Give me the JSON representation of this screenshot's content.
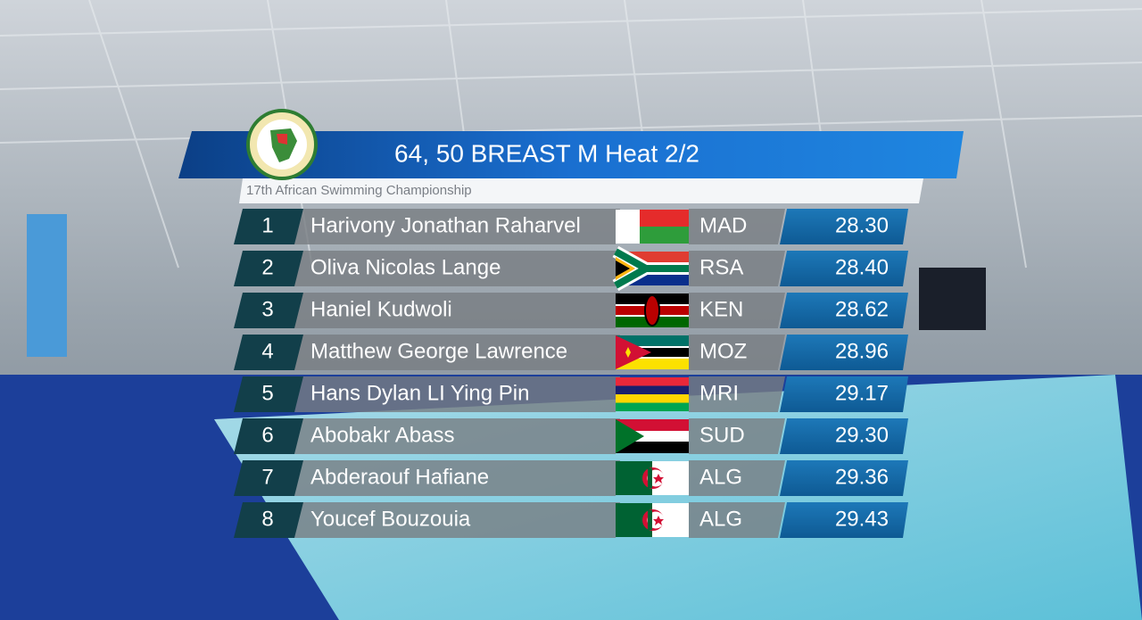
{
  "header": {
    "title": "64, 50 BREAST M Heat 2/2",
    "subtitle": "17th African Swimming Championship"
  },
  "results": [
    {
      "rank": "1",
      "name": "Harivony Jonathan Raharvel",
      "country": "MAD",
      "time": "28.30"
    },
    {
      "rank": "2",
      "name": "Oliva Nicolas Lange",
      "country": "RSA",
      "time": "28.40"
    },
    {
      "rank": "3",
      "name": "Haniel Kudwoli",
      "country": "KEN",
      "time": "28.62"
    },
    {
      "rank": "4",
      "name": "Matthew George Lawrence",
      "country": "MOZ",
      "time": "28.96"
    },
    {
      "rank": "5",
      "name": "Hans Dylan LI Ying Pin",
      "country": "MRI",
      "time": "29.17"
    },
    {
      "rank": "6",
      "name": "Abobakr Abass",
      "country": "SUD",
      "time": "29.30"
    },
    {
      "rank": "7",
      "name": "Abderaouf Hafiane",
      "country": "ALG",
      "time": "29.36"
    },
    {
      "rank": "8",
      "name": "Youcef Bouzouia",
      "country": "ALG",
      "time": "29.43"
    }
  ]
}
